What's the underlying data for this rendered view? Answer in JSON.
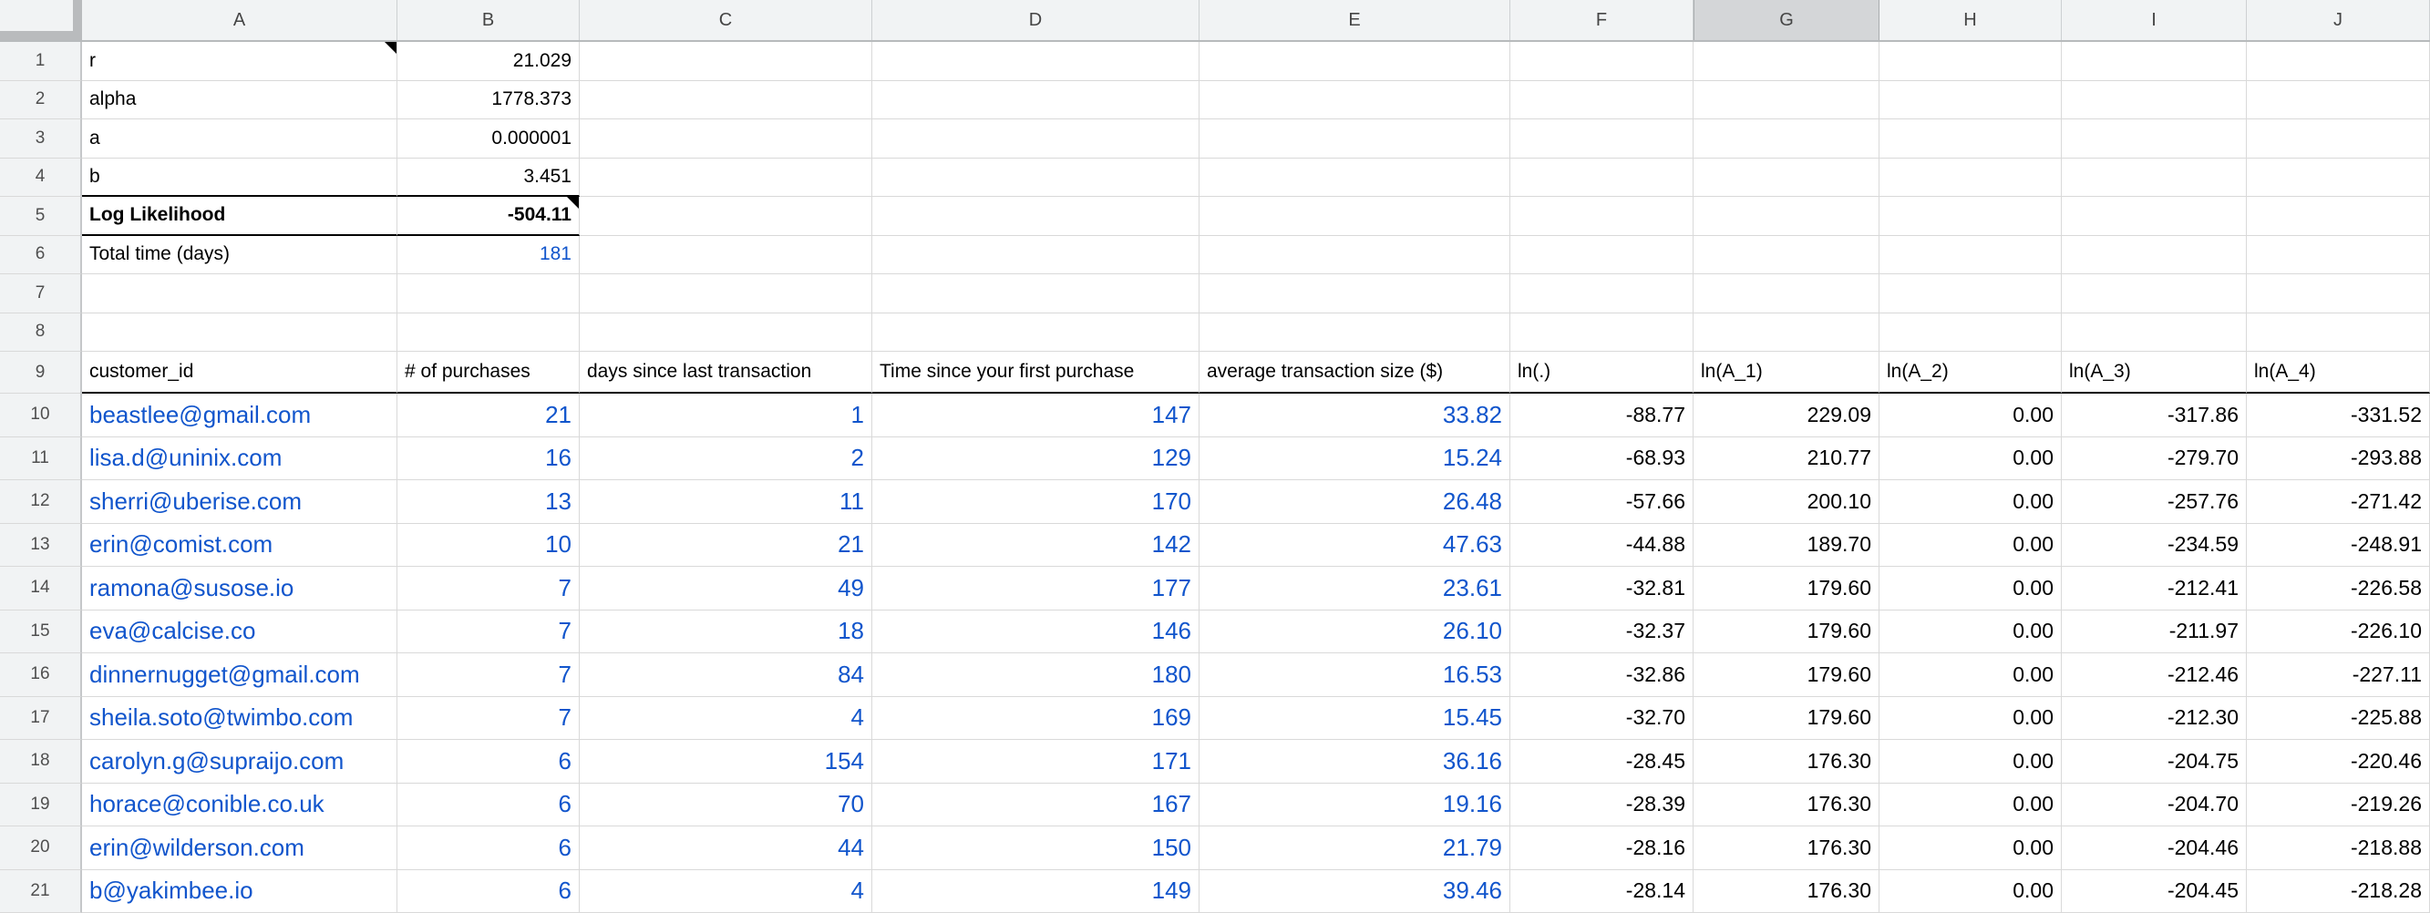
{
  "sheet": {
    "column_headers": [
      "A",
      "B",
      "C",
      "D",
      "E",
      "F",
      "G",
      "H",
      "I",
      "J"
    ],
    "selected_column": "G",
    "row_numbers": [
      "1",
      "2",
      "3",
      "4",
      "5",
      "6",
      "7",
      "8",
      "9",
      "10",
      "11",
      "12",
      "13",
      "14",
      "15",
      "16",
      "17",
      "18",
      "19",
      "20",
      "21"
    ]
  },
  "params": [
    {
      "label": "r",
      "value": "21.029",
      "note_cell": "A"
    },
    {
      "label": "alpha",
      "value": "1778.373"
    },
    {
      "label": "a",
      "value": "0.000001"
    },
    {
      "label": "b",
      "value": "3.451"
    },
    {
      "label": "Log Likelihood",
      "value": "-504.11",
      "bold": true,
      "boxed": true,
      "note_cell": "B"
    },
    {
      "label": "Total time (days)",
      "value": "181",
      "value_blue": true
    },
    {
      "label": "",
      "value": ""
    },
    {
      "label": "",
      "value": ""
    }
  ],
  "table": {
    "columns": [
      "customer_id",
      "# of purchases",
      "days since last transaction",
      "Time since your first purchase",
      "average transaction size ($)",
      "ln(.)",
      "ln(A_1)",
      "ln(A_2)",
      "ln(A_3)",
      "ln(A_4)"
    ],
    "rows": [
      [
        "beastlee@gmail.com",
        "21",
        "1",
        "147",
        "33.82",
        "-88.77",
        "229.09",
        "0.00",
        "-317.86",
        "-331.52"
      ],
      [
        "lisa.d@uninix.com",
        "16",
        "2",
        "129",
        "15.24",
        "-68.93",
        "210.77",
        "0.00",
        "-279.70",
        "-293.88"
      ],
      [
        "sherri@uberise.com",
        "13",
        "11",
        "170",
        "26.48",
        "-57.66",
        "200.10",
        "0.00",
        "-257.76",
        "-271.42"
      ],
      [
        "erin@comist.com",
        "10",
        "21",
        "142",
        "47.63",
        "-44.88",
        "189.70",
        "0.00",
        "-234.59",
        "-248.91"
      ],
      [
        "ramona@susose.io",
        "7",
        "49",
        "177",
        "23.61",
        "-32.81",
        "179.60",
        "0.00",
        "-212.41",
        "-226.58"
      ],
      [
        "eva@calcise.co",
        "7",
        "18",
        "146",
        "26.10",
        "-32.37",
        "179.60",
        "0.00",
        "-211.97",
        "-226.10"
      ],
      [
        "dinnernugget@gmail.com",
        "7",
        "84",
        "180",
        "16.53",
        "-32.86",
        "179.60",
        "0.00",
        "-212.46",
        "-227.11"
      ],
      [
        "sheila.soto@twimbo.com",
        "7",
        "4",
        "169",
        "15.45",
        "-32.70",
        "179.60",
        "0.00",
        "-212.30",
        "-225.88"
      ],
      [
        "carolyn.g@supraijo.com",
        "6",
        "154",
        "171",
        "36.16",
        "-28.45",
        "176.30",
        "0.00",
        "-204.75",
        "-220.46"
      ],
      [
        "horace@conible.co.uk",
        "6",
        "70",
        "167",
        "19.16",
        "-28.39",
        "176.30",
        "0.00",
        "-204.70",
        "-219.26"
      ],
      [
        "erin@wilderson.com",
        "6",
        "44",
        "150",
        "21.79",
        "-28.16",
        "176.30",
        "0.00",
        "-204.46",
        "-218.88"
      ],
      [
        "b@yakimbee.io",
        "6",
        "4",
        "149",
        "39.46",
        "-28.14",
        "176.30",
        "0.00",
        "-204.45",
        "-218.28"
      ]
    ]
  },
  "colors": {
    "link_blue": "#1155cc",
    "grid_line": "#d9d9d9",
    "header_bg": "#f1f3f4",
    "selected_header_bg": "#d4d6d8",
    "thick_border": "#000000"
  }
}
